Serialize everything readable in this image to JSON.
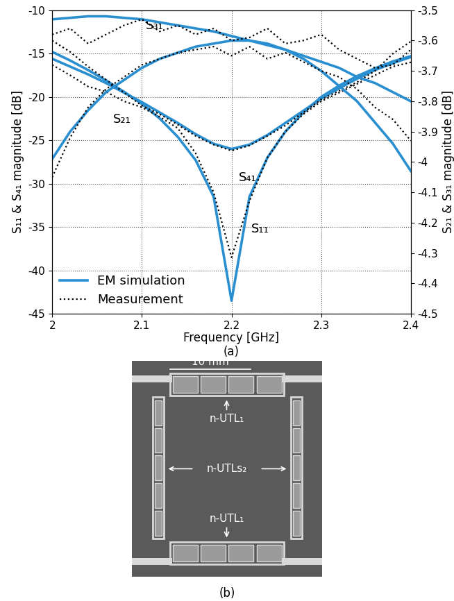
{
  "chart_data": {
    "type": "line",
    "caption": "(a)",
    "x_label": "Frequency [GHz]",
    "y_label": "S₁₁ & S₄₁ magnitude [dB]",
    "y2_label": "S₂₁ & S₃₁ magnitude [dB]",
    "annotations": [
      "S₃₁",
      "S₂₁",
      "S₄₁",
      "S₁₁"
    ],
    "x": [
      2.0,
      2.02,
      2.04,
      2.06,
      2.08,
      2.1,
      2.12,
      2.14,
      2.16,
      2.18,
      2.2,
      2.22,
      2.24,
      2.26,
      2.28,
      2.3,
      2.32,
      2.34,
      2.36,
      2.38,
      2.4
    ],
    "xlim": [
      2.0,
      2.4
    ],
    "xticks": [
      2,
      2.1,
      2.2,
      2.3,
      2.4
    ],
    "ylim": [
      -45,
      -10
    ],
    "yticks": [
      -45,
      -40,
      -35,
      -30,
      -25,
      -20,
      -15,
      -10
    ],
    "y2lim": [
      -4.5,
      -3.5
    ],
    "y2ticks": [
      -4.5,
      -4.4,
      -4.3,
      -4.2,
      -4.1,
      {
        "value": -4,
        "label": "-4"
      },
      -3.9,
      -3.8,
      -3.7,
      -3.6,
      -3.5
    ],
    "grid": true,
    "legend": "lower left",
    "series": [
      {
        "name": "EM simulation",
        "color": "#2a8fd0",
        "line_style": "solid",
        "values": [
          -14.8,
          -15.8,
          -16.9,
          -18.1,
          -19.4,
          -20.8,
          -22.5,
          -24.6,
          -27.3,
          -31.5,
          -43.5,
          -31.5,
          -27.0,
          -24.0,
          -21.8,
          -20.0,
          -18.7,
          -17.6,
          -16.7,
          -15.9,
          -15.3
        ]
      },
      {
        "name": "EM simulation",
        "color": "#2a8fd0",
        "line_style": "solid",
        "values": [
          -15.6,
          -16.5,
          -17.4,
          -18.4,
          -19.5,
          -20.6,
          -21.8,
          -23.0,
          -24.3,
          -25.4,
          -26.0,
          -25.5,
          -24.4,
          -23.0,
          -21.6,
          -20.2,
          -19.0,
          -17.9,
          -16.9,
          -16.1,
          -15.4
        ]
      },
      {
        "name": "EM simulation",
        "color": "#2a8fd0",
        "line_style": "solid",
        "axis": "y2",
        "values": [
          -3.99,
          -3.9,
          -3.83,
          -3.77,
          -3.73,
          -3.69,
          -3.66,
          -3.64,
          -3.62,
          -3.61,
          -3.6,
          -3.6,
          -3.61,
          -3.63,
          -3.66,
          -3.7,
          -3.75,
          -3.8,
          -3.87,
          -3.94,
          -4.03
        ]
      },
      {
        "name": "EM simulation",
        "color": "#2a8fd0",
        "line_style": "solid",
        "axis": "y2",
        "values": [
          -3.53,
          -3.525,
          -3.52,
          -3.52,
          -3.525,
          -3.53,
          -3.54,
          -3.55,
          -3.56,
          -3.57,
          -3.585,
          -3.6,
          -3.615,
          -3.63,
          -3.65,
          -3.67,
          -3.69,
          -3.72,
          -3.74,
          -3.77,
          -3.8
        ]
      },
      {
        "name": "Measurement",
        "color": "#000000",
        "line_style": "dotted",
        "values": [
          -16.3,
          -17.5,
          -18.8,
          -19.4,
          -20.5,
          -21.2,
          -22.3,
          -23.6,
          -26.5,
          -31.0,
          -38.5,
          -32.0,
          -27.0,
          -24.0,
          -22.0,
          -20.5,
          -19.5,
          -18.5,
          -17.5,
          -16.5,
          -16.0
        ]
      },
      {
        "name": "Measurement",
        "color": "#000000",
        "line_style": "dotted",
        "values": [
          -13.5,
          -14.8,
          -16.5,
          -18.0,
          -19.5,
          -21.0,
          -22.0,
          -23.2,
          -24.5,
          -25.5,
          -26.2,
          -25.6,
          -24.5,
          -23.3,
          -21.8,
          -20.3,
          -19.3,
          -18.3,
          -17.0,
          -15.0,
          -13.6
        ]
      },
      {
        "name": "Measurement",
        "color": "#000000",
        "line_style": "dotted",
        "axis": "y2",
        "values": [
          -4.05,
          -3.92,
          -3.82,
          -3.76,
          -3.72,
          -3.68,
          -3.66,
          -3.64,
          -3.63,
          -3.62,
          -3.65,
          -3.62,
          -3.66,
          -3.64,
          -3.67,
          -3.7,
          -3.72,
          -3.76,
          -3.82,
          -3.86,
          -3.93
        ]
      },
      {
        "name": "Measurement",
        "color": "#000000",
        "line_style": "dotted",
        "axis": "y2",
        "values": [
          -3.58,
          -3.56,
          -3.61,
          -3.58,
          -3.55,
          -3.53,
          -3.57,
          -3.55,
          -3.58,
          -3.56,
          -3.6,
          -3.59,
          -3.56,
          -3.61,
          -3.6,
          -3.58,
          -3.63,
          -3.66,
          -3.69,
          -3.68,
          -3.63
        ]
      }
    ]
  },
  "photo": {
    "caption": "(b)",
    "scale_bar": "10 mm",
    "top_label": "n-UTL₁",
    "middle_label": "n-UTLs₂",
    "bottom_label": "n-UTL₁"
  }
}
